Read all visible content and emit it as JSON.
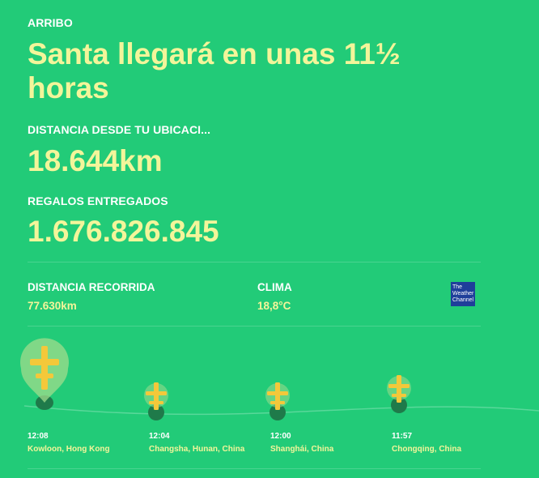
{
  "arrival": {
    "label": "ARRIBO",
    "title": "Santa llegará en unas 11½ horas"
  },
  "distance_from_you": {
    "label": "DISTANCIA DESDE TU UBICACI...",
    "value": "18.644km"
  },
  "gifts": {
    "label": "REGALOS ENTREGADOS",
    "value": "1.676.826.845"
  },
  "traveled": {
    "label": "DISTANCIA RECORRIDA",
    "value": "77.630km"
  },
  "weather": {
    "label": "CLIMA",
    "value": "18,8°C",
    "logo_line1": "The",
    "logo_line2": "Weather",
    "logo_line3": "Channel",
    "logo_color": "#1f3f9a"
  },
  "stops": [
    {
      "time": "12:08",
      "city": "Kowloon, Hong Kong"
    },
    {
      "time": "12:04",
      "city": "Changsha, Hunan, China"
    },
    {
      "time": "12:00",
      "city": "Shanghái, China"
    },
    {
      "time": "11:57",
      "city": "Chongqing, China"
    }
  ],
  "colors": {
    "background": "#22cb78",
    "accent_text": "#f3f59a",
    "marker": "#f4c83a"
  }
}
